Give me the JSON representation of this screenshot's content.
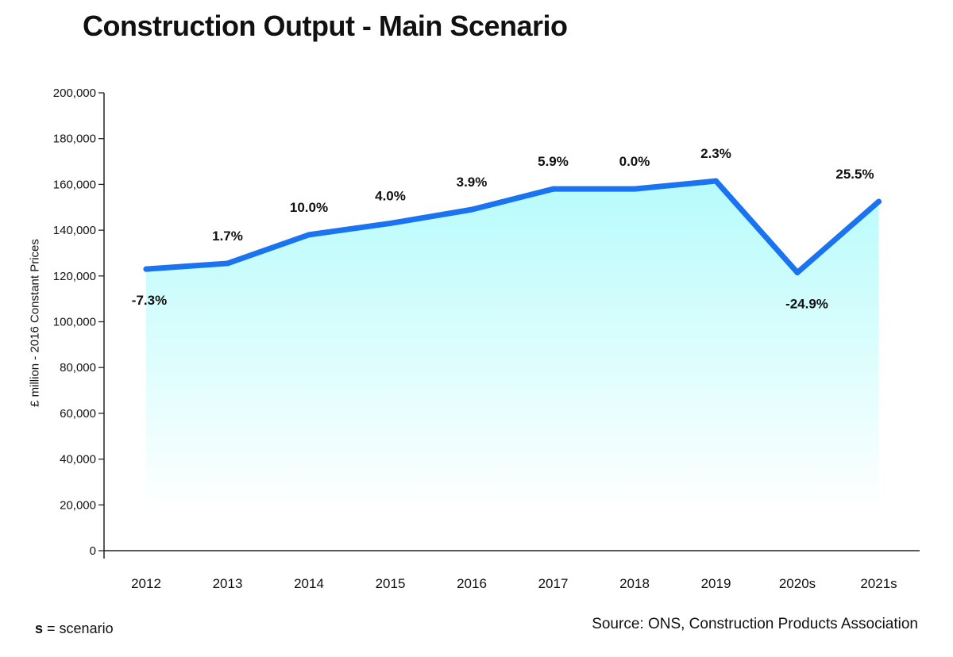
{
  "title": "Construction Output - Main Scenario",
  "footnote": {
    "key": "s",
    "text": "= scenario"
  },
  "source": "Source: ONS, Construction Products Association",
  "colors": {
    "line": "#1a73f0",
    "fill_top": "#b7fbfb",
    "fill_bottom": "#ffffff",
    "axis": "#222222",
    "text": "#111111"
  },
  "chart_data": {
    "type": "area",
    "title": "Construction Output - Main Scenario",
    "xlabel": "",
    "ylabel": "£ million - 2016 Constant Prices",
    "categories": [
      "2012",
      "2013",
      "2014",
      "2015",
      "2016",
      "2017",
      "2018",
      "2019",
      "2020s",
      "2021s"
    ],
    "values": [
      123000,
      125500,
      138000,
      143000,
      149000,
      158000,
      158000,
      161500,
      121500,
      152500
    ],
    "data_labels": [
      "-7.3%",
      "1.7%",
      "10.0%",
      "4.0%",
      "3.9%",
      "5.9%",
      "0.0%",
      "2.3%",
      "-24.9%",
      "25.5%"
    ],
    "ylim": [
      0,
      200000
    ],
    "yticks": [
      0,
      20000,
      40000,
      60000,
      80000,
      100000,
      120000,
      140000,
      160000,
      180000,
      200000
    ],
    "ytick_labels": [
      "0",
      "20,000",
      "40,000",
      "60,000",
      "80,000",
      "100,000",
      "120,000",
      "140,000",
      "160,000",
      "180,000",
      "200,000"
    ],
    "grid": false,
    "legend": "none"
  }
}
